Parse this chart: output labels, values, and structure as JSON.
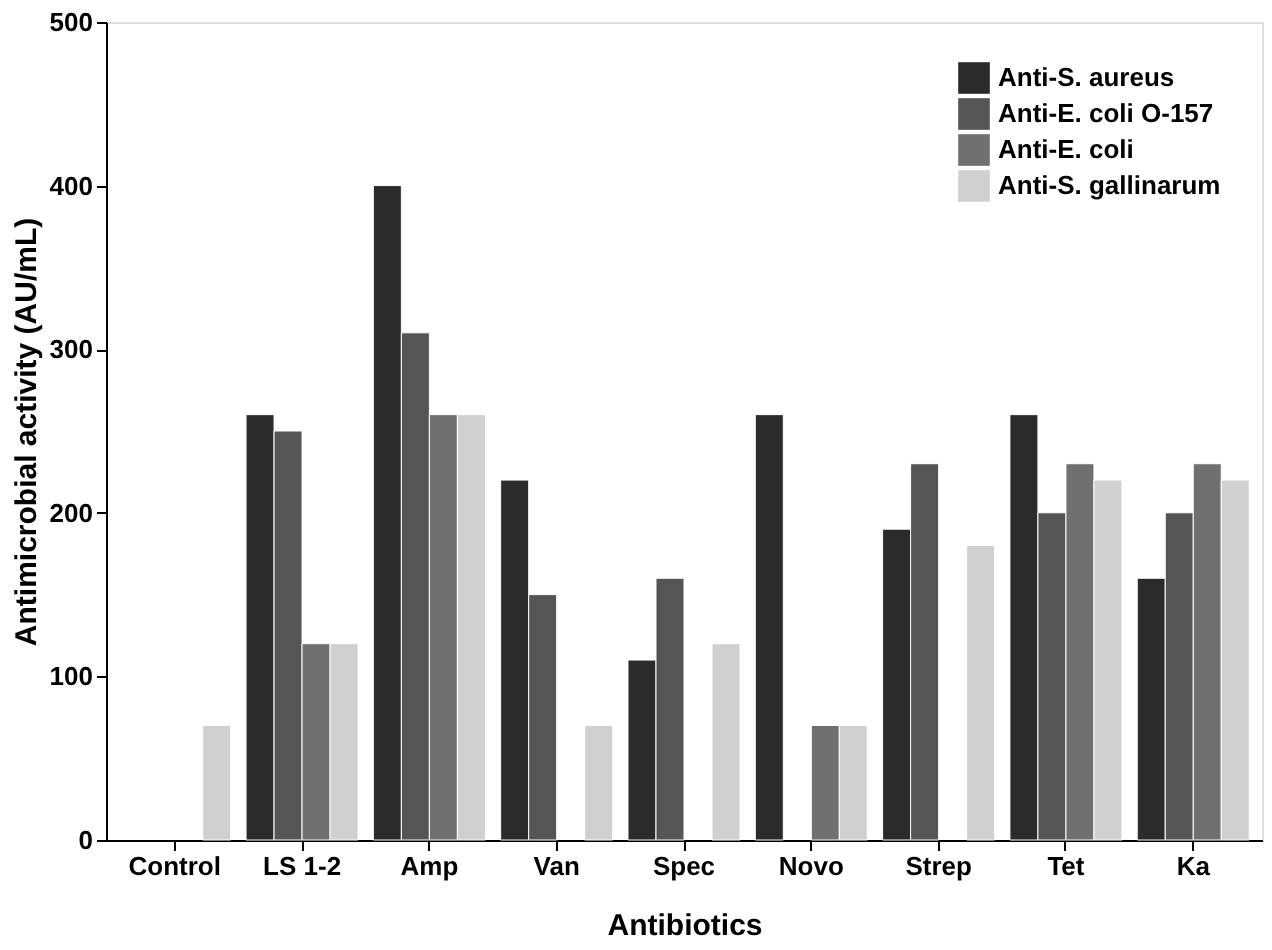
{
  "chart_data": {
    "type": "bar",
    "xlabel": "Antibiotics",
    "ylabel": "Antimicrobial activity (AU/mL)",
    "categories": [
      "Control",
      "LS 1-2",
      "Amp",
      "Van",
      "Spec",
      "Novo",
      "Strep",
      "Tet",
      "Ka"
    ],
    "series": [
      {
        "name": "Anti-S. aureus",
        "color": "#2b2b2b",
        "values": [
          null,
          260,
          400,
          220,
          110,
          260,
          190,
          260,
          160
        ]
      },
      {
        "name": "Anti-E. coli O-157",
        "color": "#555555",
        "values": [
          null,
          250,
          310,
          150,
          160,
          null,
          230,
          200,
          200
        ]
      },
      {
        "name": "Anti-E. coli",
        "color": "#707070",
        "values": [
          null,
          120,
          260,
          null,
          null,
          70,
          null,
          230,
          230
        ]
      },
      {
        "name": "Anti-S. gallinarum",
        "color": "#d0d0d0",
        "values": [
          70,
          120,
          260,
          70,
          120,
          70,
          180,
          220,
          220
        ]
      }
    ],
    "ylim": [
      0,
      500
    ],
    "yticks": [
      0,
      100,
      200,
      300,
      400,
      500
    ],
    "grid": false,
    "legend": "top right"
  }
}
